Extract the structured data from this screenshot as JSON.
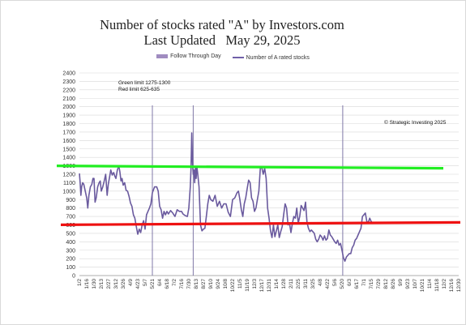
{
  "title_line1": "Number of stocks rated \"A\" by Investors.com",
  "title_line2": "Last Updated   May 29, 2025",
  "legend": [
    {
      "label": "Follow Through Day",
      "color": "#a08cc0"
    },
    {
      "label": "Number of A rated stocks",
      "color": "#7060a8"
    }
  ],
  "annotations": {
    "green_limit": "Green limit 1275-1300",
    "red_limit": "Red limit 625-635",
    "copyright": "© Strategic Investing 2025"
  },
  "colors": {
    "series": "#6a5a9e",
    "ftd": "#8078a8",
    "green": "#22ee22",
    "red": "#ee1111",
    "grid": "#d8d8d8"
  },
  "chart_data": {
    "type": "line",
    "title": "Number of stocks rated \"A\" by Investors.com",
    "subtitle": "Last Updated   May 29, 2025",
    "ylim": [
      0,
      2400
    ],
    "y_ticks": [
      0,
      100,
      200,
      300,
      400,
      500,
      600,
      700,
      800,
      900,
      1000,
      1100,
      1200,
      1300,
      1400,
      1500,
      1600,
      1700,
      1800,
      1900,
      2000,
      2100,
      2200,
      2300,
      2400
    ],
    "grid": true,
    "legend_position": "top-center",
    "x_tick_labels": [
      "1/2",
      "1/16",
      "1/30",
      "2/13",
      "2/27",
      "3/12",
      "3/26",
      "4/9",
      "4/23",
      "5/7",
      "5/21",
      "6/4",
      "6/18",
      "7/2",
      "7/16",
      "7/30",
      "8/13",
      "8/27",
      "9/10",
      "9/24",
      "10/8",
      "10/22",
      "11/5",
      "11/19",
      "12/3",
      "12/17",
      "12/31",
      "1/14",
      "1/28",
      "2/11",
      "2/25",
      "3/11",
      "3/25",
      "4/8",
      "4/22",
      "5/6",
      "5/20",
      "6/3",
      "6/17",
      "7/1",
      "7/15",
      "7/29",
      "8/12",
      "8/26",
      "9/9",
      "9/23",
      "10/7",
      "10/21",
      "11/4",
      "11/18",
      "12/2",
      "12/16",
      "12/30"
    ],
    "follow_through_days": [
      10,
      15.6,
      36.1
    ],
    "horizontal_lines": [
      {
        "label": "Green limit 1275-1300",
        "value": 1290,
        "x_extent": [
          0,
          52
        ]
      },
      {
        "label": "Red limit 625-635",
        "value": 630,
        "x_extent": [
          0,
          52
        ]
      }
    ],
    "series": [
      {
        "name": "Number of A rated stocks",
        "points": [
          [
            0,
            1210
          ],
          [
            0.1,
            1100
          ],
          [
            0.2,
            950
          ],
          [
            0.3,
            1050
          ],
          [
            0.45,
            1100
          ],
          [
            0.6,
            1080
          ],
          [
            0.8,
            1000
          ],
          [
            1.0,
            920
          ],
          [
            1.15,
            800
          ],
          [
            1.3,
            950
          ],
          [
            1.5,
            1050
          ],
          [
            1.7,
            1080
          ],
          [
            1.85,
            1150
          ],
          [
            2.0,
            1150
          ],
          [
            2.15,
            870
          ],
          [
            2.3,
            920
          ],
          [
            2.5,
            1050
          ],
          [
            2.7,
            1100
          ],
          [
            2.85,
            1120
          ],
          [
            3.0,
            1000
          ],
          [
            3.2,
            1050
          ],
          [
            3.4,
            1120
          ],
          [
            3.6,
            1200
          ],
          [
            3.8,
            950
          ],
          [
            3.95,
            1080
          ],
          [
            4.1,
            1150
          ],
          [
            4.3,
            1250
          ],
          [
            4.5,
            1190
          ],
          [
            4.7,
            1220
          ],
          [
            4.85,
            1180
          ],
          [
            5.0,
            1150
          ],
          [
            5.2,
            1250
          ],
          [
            5.4,
            1300
          ],
          [
            5.55,
            1230
          ],
          [
            5.7,
            1120
          ],
          [
            5.85,
            1150
          ],
          [
            6.0,
            1070
          ],
          [
            6.2,
            1100
          ],
          [
            6.4,
            1010
          ],
          [
            6.6,
            1000
          ],
          [
            6.8,
            940
          ],
          [
            7.0,
            860
          ],
          [
            7.2,
            820
          ],
          [
            7.4,
            720
          ],
          [
            7.6,
            680
          ],
          [
            7.8,
            580
          ],
          [
            8.0,
            490
          ],
          [
            8.2,
            550
          ],
          [
            8.4,
            510
          ],
          [
            8.6,
            600
          ],
          [
            8.8,
            650
          ],
          [
            9.0,
            550
          ],
          [
            9.2,
            720
          ],
          [
            9.4,
            760
          ],
          [
            9.6,
            800
          ],
          [
            9.8,
            850
          ],
          [
            10.0,
            980
          ],
          [
            10.3,
            1050
          ],
          [
            10.6,
            1050
          ],
          [
            10.8,
            1000
          ],
          [
            11.0,
            820
          ],
          [
            11.2,
            780
          ],
          [
            11.4,
            680
          ],
          [
            11.6,
            760
          ],
          [
            11.8,
            720
          ],
          [
            12.0,
            760
          ],
          [
            12.2,
            730
          ],
          [
            12.5,
            770
          ],
          [
            12.8,
            740
          ],
          [
            13.1,
            700
          ],
          [
            13.4,
            780
          ],
          [
            13.7,
            760
          ],
          [
            14.0,
            760
          ],
          [
            14.2,
            730
          ],
          [
            14.5,
            710
          ],
          [
            14.8,
            700
          ],
          [
            15.0,
            800
          ],
          [
            15.2,
            1050
          ],
          [
            15.3,
            1270
          ],
          [
            15.4,
            1690
          ],
          [
            15.5,
            1350
          ],
          [
            15.6,
            1200
          ],
          [
            15.7,
            1250
          ],
          [
            15.8,
            1100
          ],
          [
            15.9,
            1280
          ],
          [
            16.0,
            1150
          ],
          [
            16.1,
            1290
          ],
          [
            16.2,
            1220
          ],
          [
            16.4,
            1050
          ],
          [
            16.6,
            600
          ],
          [
            16.8,
            530
          ],
          [
            17.0,
            550
          ],
          [
            17.2,
            560
          ],
          [
            17.4,
            700
          ],
          [
            17.6,
            850
          ],
          [
            17.8,
            950
          ],
          [
            18.0,
            900
          ],
          [
            18.3,
            880
          ],
          [
            18.6,
            950
          ],
          [
            18.9,
            820
          ],
          [
            19.2,
            880
          ],
          [
            19.5,
            800
          ],
          [
            19.8,
            850
          ],
          [
            20.1,
            850
          ],
          [
            20.4,
            750
          ],
          [
            20.7,
            700
          ],
          [
            21.0,
            900
          ],
          [
            21.3,
            920
          ],
          [
            21.6,
            980
          ],
          [
            21.8,
            1000
          ],
          [
            22.0,
            900
          ],
          [
            22.2,
            780
          ],
          [
            22.4,
            700
          ],
          [
            22.6,
            850
          ],
          [
            22.8,
            920
          ],
          [
            23.0,
            1030
          ],
          [
            23.2,
            1130
          ],
          [
            23.4,
            1100
          ],
          [
            23.6,
            920
          ],
          [
            23.8,
            880
          ],
          [
            24.0,
            760
          ],
          [
            24.2,
            800
          ],
          [
            24.4,
            900
          ],
          [
            24.6,
            1000
          ],
          [
            24.8,
            1270
          ],
          [
            25.0,
            1280
          ],
          [
            25.2,
            1200
          ],
          [
            25.4,
            1270
          ],
          [
            25.6,
            1150
          ],
          [
            25.8,
            800
          ],
          [
            26.0,
            680
          ],
          [
            26.2,
            530
          ],
          [
            26.4,
            450
          ],
          [
            26.6,
            600
          ],
          [
            26.8,
            460
          ],
          [
            27.0,
            530
          ],
          [
            27.2,
            600
          ],
          [
            27.4,
            450
          ],
          [
            27.6,
            520
          ],
          [
            27.8,
            580
          ],
          [
            28.0,
            720
          ],
          [
            28.2,
            850
          ],
          [
            28.4,
            800
          ],
          [
            28.6,
            600
          ],
          [
            28.8,
            620
          ],
          [
            29.0,
            510
          ],
          [
            29.2,
            620
          ],
          [
            29.4,
            700
          ],
          [
            29.6,
            680
          ],
          [
            29.8,
            800
          ],
          [
            30.0,
            620
          ],
          [
            30.2,
            700
          ],
          [
            30.4,
            830
          ],
          [
            30.6,
            800
          ],
          [
            30.8,
            770
          ],
          [
            31.0,
            870
          ],
          [
            31.2,
            630
          ],
          [
            31.4,
            560
          ],
          [
            31.6,
            520
          ],
          [
            31.8,
            540
          ],
          [
            32.0,
            520
          ],
          [
            32.2,
            500
          ],
          [
            32.4,
            430
          ],
          [
            32.6,
            400
          ],
          [
            32.8,
            430
          ],
          [
            33.0,
            480
          ],
          [
            33.2,
            460
          ],
          [
            33.4,
            420
          ],
          [
            33.6,
            470
          ],
          [
            33.8,
            420
          ],
          [
            34.0,
            440
          ],
          [
            34.2,
            540
          ],
          [
            34.4,
            480
          ],
          [
            34.6,
            460
          ],
          [
            34.8,
            430
          ],
          [
            35.0,
            400
          ],
          [
            35.2,
            380
          ],
          [
            35.4,
            420
          ],
          [
            35.6,
            360
          ],
          [
            35.8,
            380
          ],
          [
            36.0,
            300
          ],
          [
            36.2,
            210
          ],
          [
            36.4,
            170
          ],
          [
            36.6,
            220
          ],
          [
            36.8,
            240
          ],
          [
            37.0,
            260
          ],
          [
            37.2,
            260
          ],
          [
            37.4,
            330
          ],
          [
            37.6,
            360
          ],
          [
            37.8,
            420
          ],
          [
            38.0,
            440
          ],
          [
            38.2,
            480
          ],
          [
            38.4,
            520
          ],
          [
            38.6,
            560
          ],
          [
            38.8,
            700
          ],
          [
            39.0,
            720
          ],
          [
            39.2,
            740
          ],
          [
            39.4,
            640
          ],
          [
            39.6,
            630
          ],
          [
            39.8,
            680
          ],
          [
            40.0,
            640
          ],
          [
            40.2,
            620
          ]
        ]
      }
    ]
  }
}
